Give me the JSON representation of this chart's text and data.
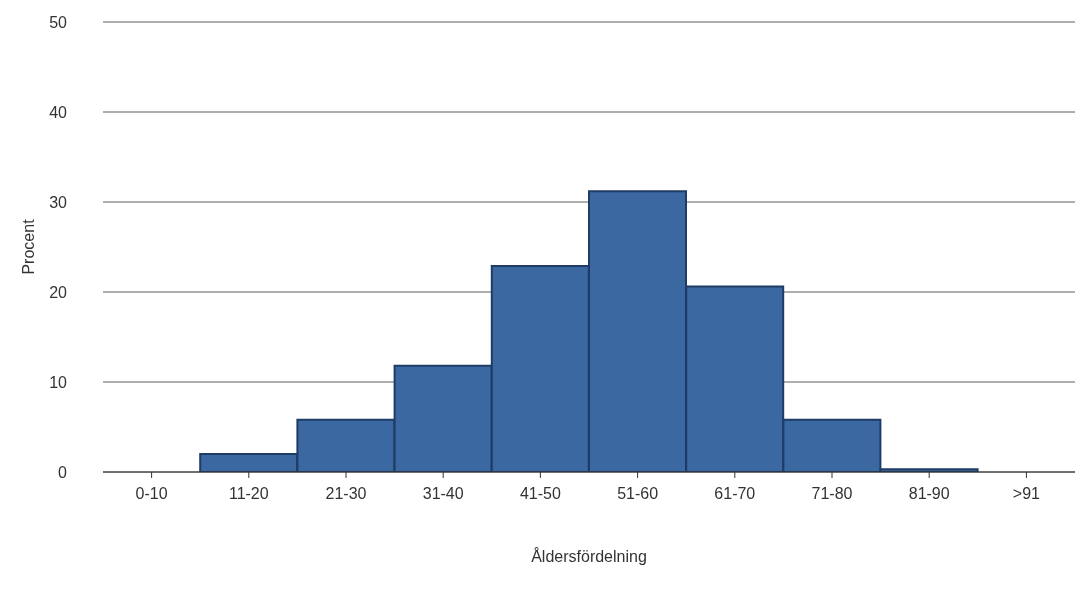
{
  "chart_data": {
    "type": "bar",
    "xlabel": "Åldersfördelning",
    "ylabel": "Procent",
    "categories": [
      "0-10",
      "11-20",
      "21-30",
      "31-40",
      "41-50",
      "51-60",
      "61-70",
      "71-80",
      "81-90",
      ">91"
    ],
    "values": [
      0,
      2,
      5.8,
      11.8,
      22.9,
      31.2,
      20.6,
      5.8,
      0.3,
      0
    ],
    "color": "#3b68a0",
    "ylim": [
      0,
      50
    ],
    "yticks": [
      0,
      10,
      20,
      30,
      40,
      50
    ],
    "grid": "y"
  }
}
